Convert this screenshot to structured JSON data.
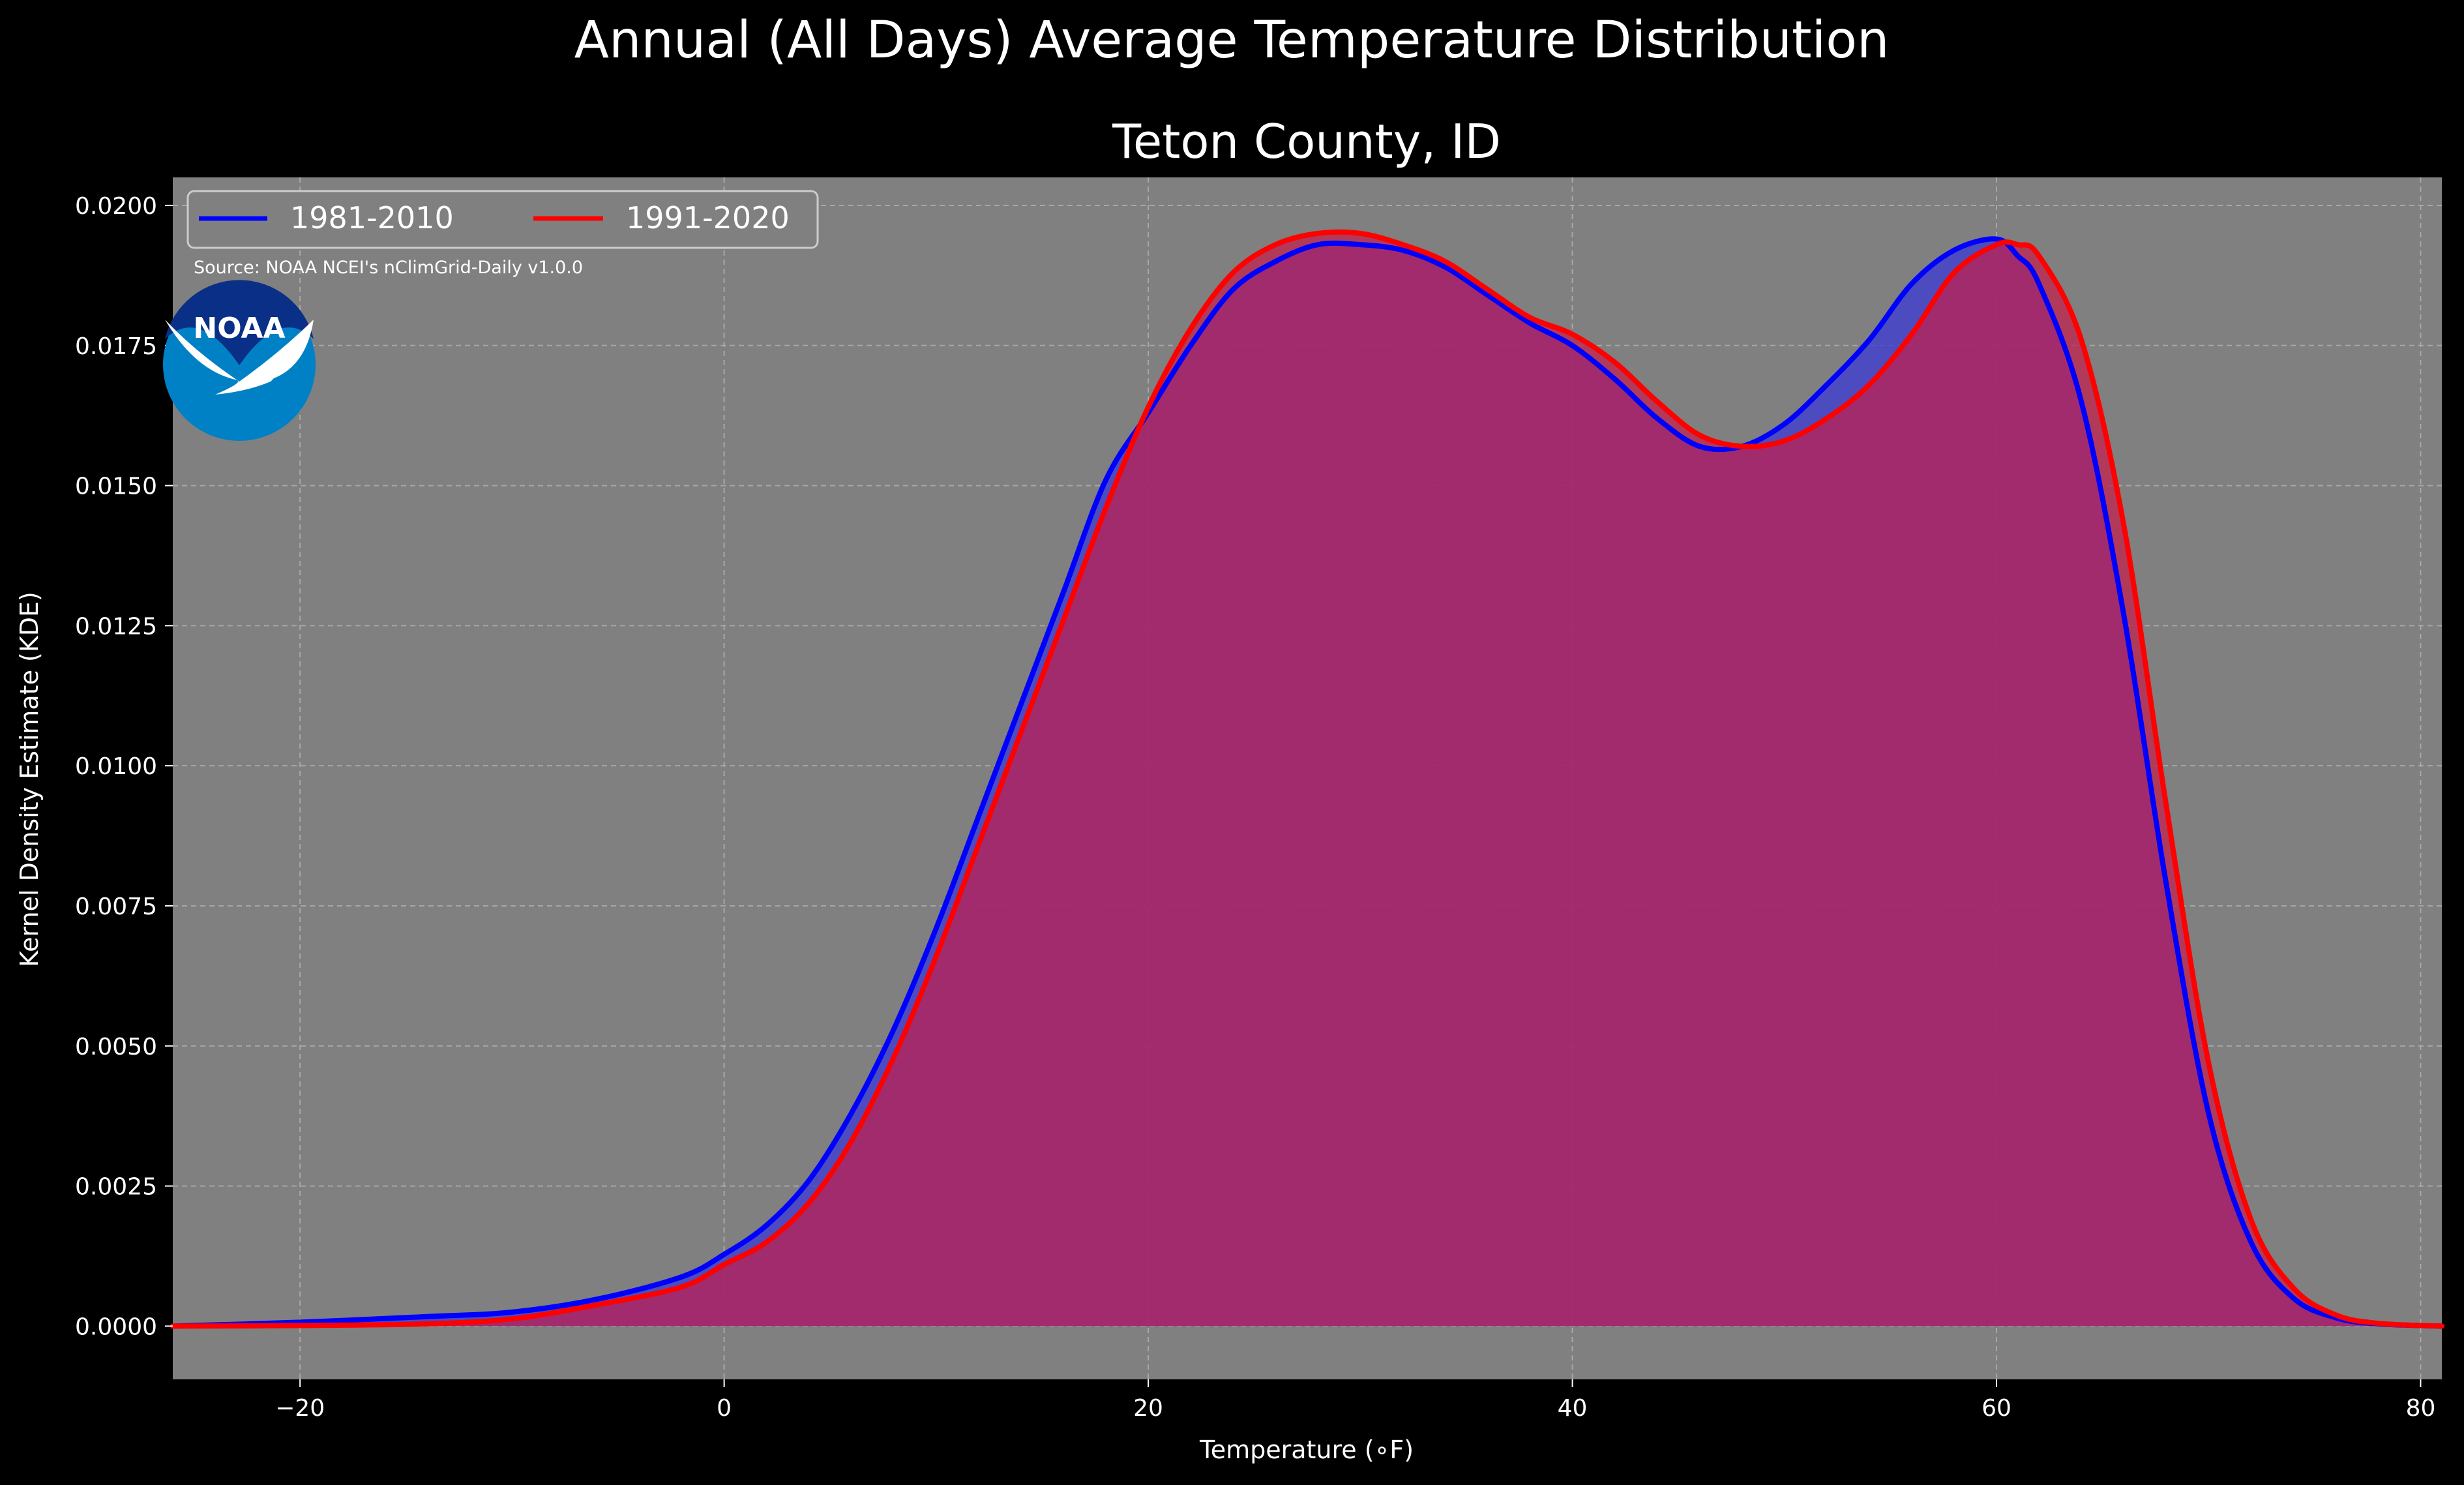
{
  "suptitle": "Annual (All Days) Average Temperature Distribution",
  "subtitle": "Teton County, ID",
  "source_note": "Source: NOAA NCEI's nClimGrid-Daily v1.0.0",
  "logo": {
    "icon": "noaa-logo",
    "text": "NOAA",
    "colors": {
      "top": "#0a2f86",
      "bottom": "#0081c6"
    }
  },
  "colors": {
    "background": "#000000",
    "plot_bg": "#808080",
    "grid": "#b0b0b0",
    "text": "#ffffff",
    "fill": "#9c1c5c"
  },
  "chart_data": {
    "type": "area",
    "title": "Teton County, ID",
    "xlabel": "Temperature ($^\\circ$F)",
    "xlabel_text": "Temperature (∘F)",
    "ylabel": "Kernel Density Estimate (KDE)",
    "xlim": [
      -26,
      81
    ],
    "ylim": [
      -0.00095,
      0.0205
    ],
    "grid": true,
    "legend_position": "upper-left",
    "x_ticks": [
      -20,
      0,
      20,
      40,
      60,
      80
    ],
    "x_tick_labels": [
      "−20",
      "0",
      "20",
      "40",
      "60",
      "80"
    ],
    "y_ticks": [
      0,
      0.0025,
      0.005,
      0.0075,
      0.01,
      0.0125,
      0.015,
      0.0175,
      0.02
    ],
    "y_tick_labels": [
      "0.0000",
      "0.0025",
      "0.0050",
      "0.0075",
      "0.0100",
      "0.0125",
      "0.0150",
      "0.0175",
      "0.0200"
    ],
    "series": [
      {
        "name": "1981-2010",
        "color": "#0000ff",
        "x": [
          -26,
          -20,
          -14,
          -10,
          -6,
          -2,
          0,
          2,
          4,
          6,
          8,
          10,
          12,
          14,
          16,
          18,
          20,
          22,
          24,
          26,
          28,
          30,
          32,
          34,
          36,
          38,
          40,
          42,
          44,
          46,
          48,
          50,
          52,
          54,
          56,
          58,
          60,
          61,
          62,
          64,
          66,
          68,
          70,
          72,
          74,
          76,
          78,
          81
        ],
        "y": [
          0.0,
          7e-05,
          0.00017,
          0.00025,
          0.00048,
          0.00088,
          0.00128,
          0.0018,
          0.0026,
          0.0038,
          0.0053,
          0.0071,
          0.0091,
          0.0111,
          0.0131,
          0.0151,
          0.0163,
          0.0175,
          0.0185,
          0.019,
          0.0193,
          0.0193,
          0.0192,
          0.0189,
          0.0184,
          0.0179,
          0.0175,
          0.0169,
          0.0162,
          0.0157,
          0.0157,
          0.0161,
          0.0168,
          0.0176,
          0.0186,
          0.0192,
          0.0194,
          0.0191,
          0.0186,
          0.0165,
          0.0127,
          0.0079,
          0.0038,
          0.0015,
          0.0005,
          0.00015,
          4e-05,
          0.0
        ]
      },
      {
        "name": "1991-2020",
        "color": "#ff0000",
        "x": [
          -26,
          -20,
          -14,
          -10,
          -6,
          -2,
          0,
          2,
          4,
          6,
          8,
          10,
          12,
          14,
          16,
          18,
          20,
          22,
          24,
          26,
          28,
          30,
          32,
          34,
          36,
          38,
          40,
          42,
          44,
          46,
          48,
          50,
          52,
          54,
          56,
          58,
          60,
          61,
          62,
          64,
          66,
          68,
          70,
          72,
          74,
          76,
          78,
          81
        ],
        "y": [
          0.0,
          1e-05,
          4e-05,
          0.00013,
          0.00038,
          0.0007,
          0.0011,
          0.0015,
          0.0022,
          0.0033,
          0.0048,
          0.0066,
          0.0086,
          0.0106,
          0.0126,
          0.0146,
          0.0164,
          0.0178,
          0.0188,
          0.0193,
          0.0195,
          0.0195,
          0.0193,
          0.019,
          0.0185,
          0.018,
          0.0177,
          0.0172,
          0.0165,
          0.0159,
          0.0157,
          0.0158,
          0.0162,
          0.0168,
          0.0177,
          0.0188,
          0.0193,
          0.0193,
          0.0191,
          0.0176,
          0.0143,
          0.0093,
          0.0047,
          0.0019,
          0.00068,
          0.0002,
          5e-05,
          0.0
        ]
      }
    ]
  }
}
